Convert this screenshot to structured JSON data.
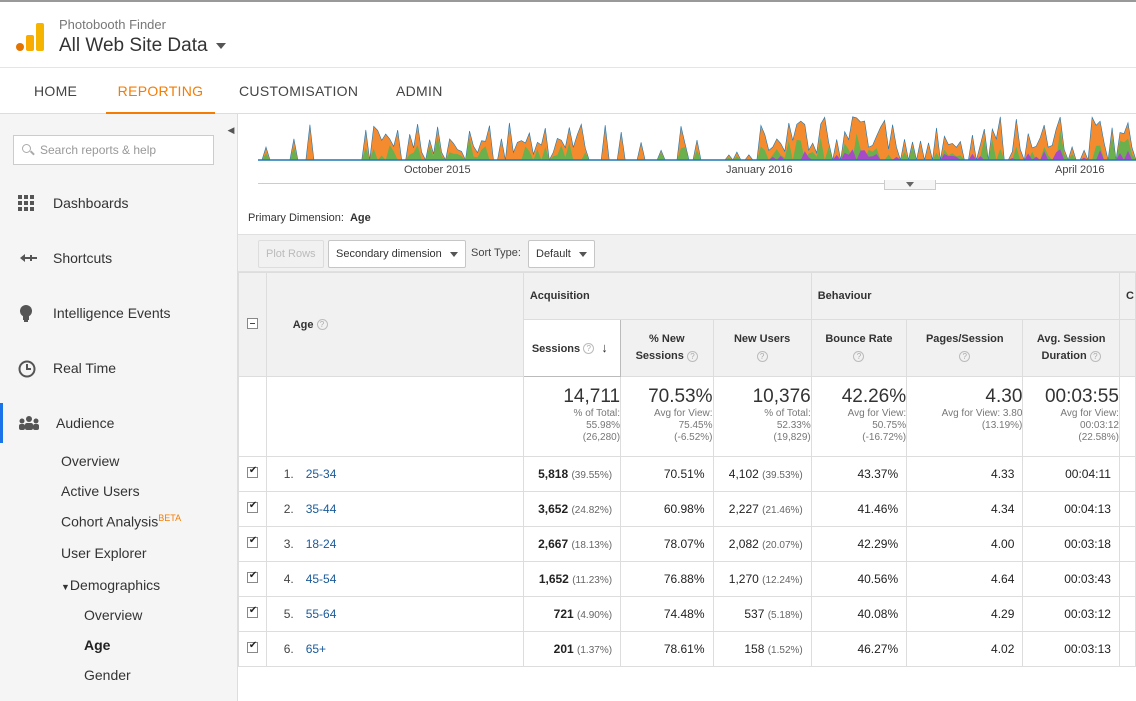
{
  "header": {
    "account": "Photobooth Finder",
    "property": "All Web Site Data"
  },
  "nav": {
    "tabs": [
      "HOME",
      "REPORTING",
      "CUSTOMISATION",
      "ADMIN"
    ],
    "active": "REPORTING"
  },
  "sidebar": {
    "search_placeholder": "Search reports & help",
    "items": [
      {
        "label": "Dashboards",
        "icon": "grid-icon"
      },
      {
        "label": "Shortcuts",
        "icon": "shortcut-arrow-icon"
      },
      {
        "label": "Intelligence Events",
        "icon": "lightbulb-icon"
      },
      {
        "label": "Real Time",
        "icon": "clock-icon"
      },
      {
        "label": "Audience",
        "icon": "people-icon"
      }
    ],
    "audience_sub": [
      "Overview",
      "Active Users",
      "Cohort Analysis",
      "User Explorer",
      "Demographics"
    ],
    "beta": "BETA",
    "demographics_sub": [
      "Overview",
      "Age",
      "Gender"
    ]
  },
  "chart": {
    "x_labels": [
      "October 2015",
      "January 2016",
      "April 2016"
    ],
    "series_colors": [
      "#f48c2f",
      "#6ab04c",
      "#a64ac9",
      "#e8e83a",
      "#1f77b4"
    ]
  },
  "controls": {
    "primary_dimension_label": "Primary Dimension:",
    "primary_dimension_value": "Age",
    "plot_rows": "Plot Rows",
    "secondary_dimension": "Secondary dimension",
    "sort_type_label": "Sort Type:",
    "sort_type_value": "Default"
  },
  "table": {
    "group_acquisition": "Acquisition",
    "group_behaviour": "Behaviour",
    "group_conversions_partial": "C",
    "col_age": "Age",
    "col_sessions": "Sessions",
    "col_new_sessions_1": "% New",
    "col_new_sessions_2": "Sessions",
    "col_new_users": "New Users",
    "col_bounce": "Bounce Rate",
    "col_pages": "Pages/Session",
    "col_duration_1": "Avg. Session",
    "col_duration_2": "Duration",
    "totals": {
      "sessions": {
        "big": "14,711",
        "l1": "% of Total:",
        "l2": "55.98%",
        "l3": "(26,280)"
      },
      "new_sessions": {
        "big": "70.53%",
        "l1": "Avg for View:",
        "l2": "75.45%",
        "l3": "(-6.52%)"
      },
      "new_users": {
        "big": "10,376",
        "l1": "% of Total:",
        "l2": "52.33%",
        "l3": "(19,829)"
      },
      "bounce": {
        "big": "42.26%",
        "l1": "Avg for View:",
        "l2": "50.75%",
        "l3": "(-16.72%)"
      },
      "pages": {
        "big": "4.30",
        "l1": "Avg for View: 3.80",
        "l2": "(13.19%)",
        "l3": ""
      },
      "duration": {
        "big": "00:03:55",
        "l1": "Avg for View:",
        "l2": "00:03:12",
        "l3": "(22.58%)"
      }
    },
    "rows": [
      {
        "rank": "1.",
        "age": "25-34",
        "sessions": "5,818",
        "sessions_pct": "(39.55%)",
        "new_sessions": "70.51%",
        "new_users": "4,102",
        "new_users_pct": "(39.53%)",
        "bounce": "43.37%",
        "pages": "4.33",
        "duration": "00:04:11"
      },
      {
        "rank": "2.",
        "age": "35-44",
        "sessions": "3,652",
        "sessions_pct": "(24.82%)",
        "new_sessions": "60.98%",
        "new_users": "2,227",
        "new_users_pct": "(21.46%)",
        "bounce": "41.46%",
        "pages": "4.34",
        "duration": "00:04:13"
      },
      {
        "rank": "3.",
        "age": "18-24",
        "sessions": "2,667",
        "sessions_pct": "(18.13%)",
        "new_sessions": "78.07%",
        "new_users": "2,082",
        "new_users_pct": "(20.07%)",
        "bounce": "42.29%",
        "pages": "4.00",
        "duration": "00:03:18"
      },
      {
        "rank": "4.",
        "age": "45-54",
        "sessions": "1,652",
        "sessions_pct": "(11.23%)",
        "new_sessions": "76.88%",
        "new_users": "1,270",
        "new_users_pct": "(12.24%)",
        "bounce": "40.56%",
        "pages": "4.64",
        "duration": "00:03:43"
      },
      {
        "rank": "5.",
        "age": "55-64",
        "sessions": "721",
        "sessions_pct": "(4.90%)",
        "new_sessions": "74.48%",
        "new_users": "537",
        "new_users_pct": "(5.18%)",
        "bounce": "40.08%",
        "pages": "4.29",
        "duration": "00:03:12"
      },
      {
        "rank": "6.",
        "age": "65+",
        "sessions": "201",
        "sessions_pct": "(1.37%)",
        "new_sessions": "78.61%",
        "new_users": "158",
        "new_users_pct": "(1.52%)",
        "bounce": "46.27%",
        "pages": "4.02",
        "duration": "00:03:13"
      }
    ]
  }
}
